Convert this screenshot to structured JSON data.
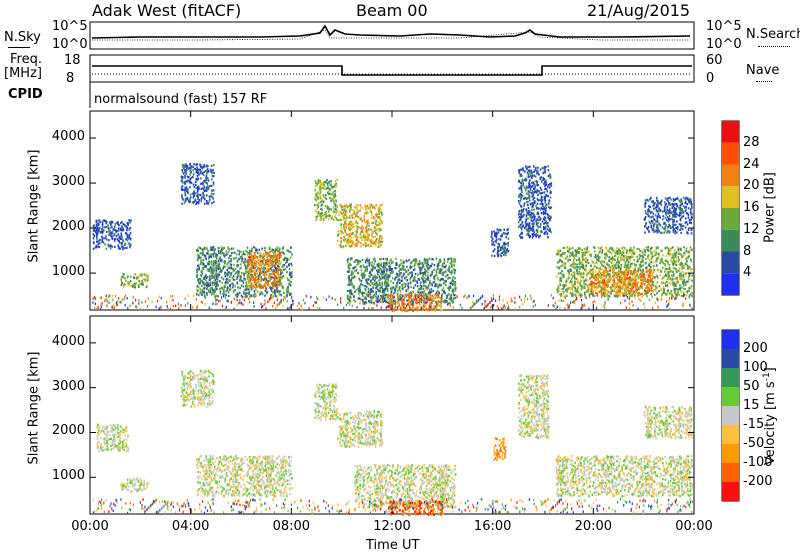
{
  "header": {
    "radar": "Adak West (fitACF)",
    "beam": "Beam 00",
    "date": "21/Aug/2015"
  },
  "top_panel": {
    "left_label": "N.Sky",
    "left_ticks": [
      "10^5",
      "10^0"
    ],
    "right_label": "N.Search",
    "right_ticks": [
      "10^5",
      "10^0"
    ]
  },
  "freq_panel": {
    "left_label_line1": "Freq.",
    "left_label_line2": "[MHz]",
    "left_ticks": [
      "18",
      "8"
    ],
    "right_label": "Nave",
    "right_ticks": [
      "60",
      "0"
    ]
  },
  "cpid": {
    "label": "CPID",
    "mode": "normalsound (fast) 157 RF"
  },
  "colors": {
    "power": [
      "#1f2ff0",
      "#2a4aa8",
      "#3a8a5a",
      "#6aaa3a",
      "#e0c020",
      "#f08010",
      "#ff5000",
      "#ee1010"
    ],
    "velocity": [
      "#ff1010",
      "#ff6000",
      "#ff9a00",
      "#ffc040",
      "#c8c8c8",
      "#66cc33",
      "#339955",
      "#2a4aa8",
      "#1f2ff0"
    ]
  },
  "chart_data": [
    {
      "type": "heatmap",
      "name": "power",
      "ylabel": "Slant Range [km]",
      "xlabel": "",
      "ylim": [
        180,
        4600
      ],
      "yticks": [
        1000,
        2000,
        3000,
        4000
      ],
      "xticks": [
        "00:00",
        "04:00",
        "08:00",
        "12:00",
        "16:00",
        "20:00",
        "00:00"
      ],
      "xlim_hours": [
        0,
        24
      ],
      "colorbar": {
        "label": "Power [dB]",
        "ticks": [
          "4",
          "8",
          "12",
          "16",
          "20",
          "24",
          "28"
        ],
        "range": [
          0,
          32
        ]
      },
      "regions": [
        {
          "t0": 0.1,
          "t1": 1.6,
          "r0": 1550,
          "r1": 2200,
          "level": 1
        },
        {
          "t0": 1.2,
          "t1": 2.3,
          "r0": 700,
          "r1": 1000,
          "level": 3
        },
        {
          "t0": 3.6,
          "t1": 4.9,
          "r0": 2550,
          "r1": 3450,
          "level": 1
        },
        {
          "t0": 4.2,
          "t1": 8.0,
          "r0": 500,
          "r1": 1600,
          "level": 2
        },
        {
          "t0": 6.2,
          "t1": 7.6,
          "r0": 700,
          "r1": 1500,
          "level": 5
        },
        {
          "t0": 8.9,
          "t1": 9.8,
          "r0": 2200,
          "r1": 3100,
          "level": 3
        },
        {
          "t0": 9.8,
          "t1": 11.6,
          "r0": 1600,
          "r1": 2550,
          "level": 4
        },
        {
          "t0": 10.2,
          "t1": 14.5,
          "r0": 350,
          "r1": 1350,
          "level": 2
        },
        {
          "t0": 11.8,
          "t1": 14.0,
          "r0": 180,
          "r1": 550,
          "level": 5
        },
        {
          "t0": 15.9,
          "t1": 16.6,
          "r0": 1400,
          "r1": 2000,
          "level": 1
        },
        {
          "t0": 17.0,
          "t1": 18.3,
          "r0": 1800,
          "r1": 3400,
          "level": 1
        },
        {
          "t0": 18.5,
          "t1": 23.9,
          "r0": 500,
          "r1": 1600,
          "level": 3
        },
        {
          "t0": 19.8,
          "t1": 22.3,
          "r0": 550,
          "r1": 1100,
          "level": 5
        },
        {
          "t0": 22.0,
          "t1": 23.9,
          "r0": 1900,
          "r1": 2700,
          "level": 1
        }
      ]
    },
    {
      "type": "heatmap",
      "name": "velocity",
      "ylabel": "Slant Range [km]",
      "xlabel": "Time UT",
      "ylim": [
        180,
        4600
      ],
      "yticks": [
        1000,
        2000,
        3000,
        4000
      ],
      "xticks": [
        "00:00",
        "04:00",
        "08:00",
        "12:00",
        "16:00",
        "20:00",
        "00:00"
      ],
      "xlim_hours": [
        0,
        24
      ],
      "colorbar": {
        "label": "Velocity [m s-1]",
        "ticks": [
          "200",
          "100",
          "50",
          "15",
          "-15",
          "-50",
          "-100",
          "-200"
        ]
      },
      "regions": [
        {
          "t0": 0.2,
          "t1": 1.5,
          "r0": 1600,
          "r1": 2200,
          "level": 4
        },
        {
          "t0": 1.2,
          "t1": 2.3,
          "r0": 700,
          "r1": 1000,
          "level": 4
        },
        {
          "t0": 3.6,
          "t1": 4.9,
          "r0": 2600,
          "r1": 3400,
          "level": 4
        },
        {
          "t0": 4.2,
          "t1": 8.0,
          "r0": 600,
          "r1": 1500,
          "level": 4
        },
        {
          "t0": 8.9,
          "t1": 9.8,
          "r0": 2300,
          "r1": 3100,
          "level": 4
        },
        {
          "t0": 9.8,
          "t1": 11.6,
          "r0": 1700,
          "r1": 2500,
          "level": 4
        },
        {
          "t0": 10.5,
          "t1": 14.5,
          "r0": 350,
          "r1": 1300,
          "level": 4
        },
        {
          "t0": 11.8,
          "t1": 14.0,
          "r0": 180,
          "r1": 500,
          "level": 1
        },
        {
          "t0": 16.0,
          "t1": 16.5,
          "r0": 1400,
          "r1": 1900,
          "level": 2
        },
        {
          "t0": 17.0,
          "t1": 18.2,
          "r0": 1900,
          "r1": 3300,
          "level": 4
        },
        {
          "t0": 18.5,
          "t1": 23.9,
          "r0": 600,
          "r1": 1500,
          "level": 4
        },
        {
          "t0": 22.0,
          "t1": 23.9,
          "r0": 1900,
          "r1": 2600,
          "level": 4
        }
      ]
    }
  ]
}
